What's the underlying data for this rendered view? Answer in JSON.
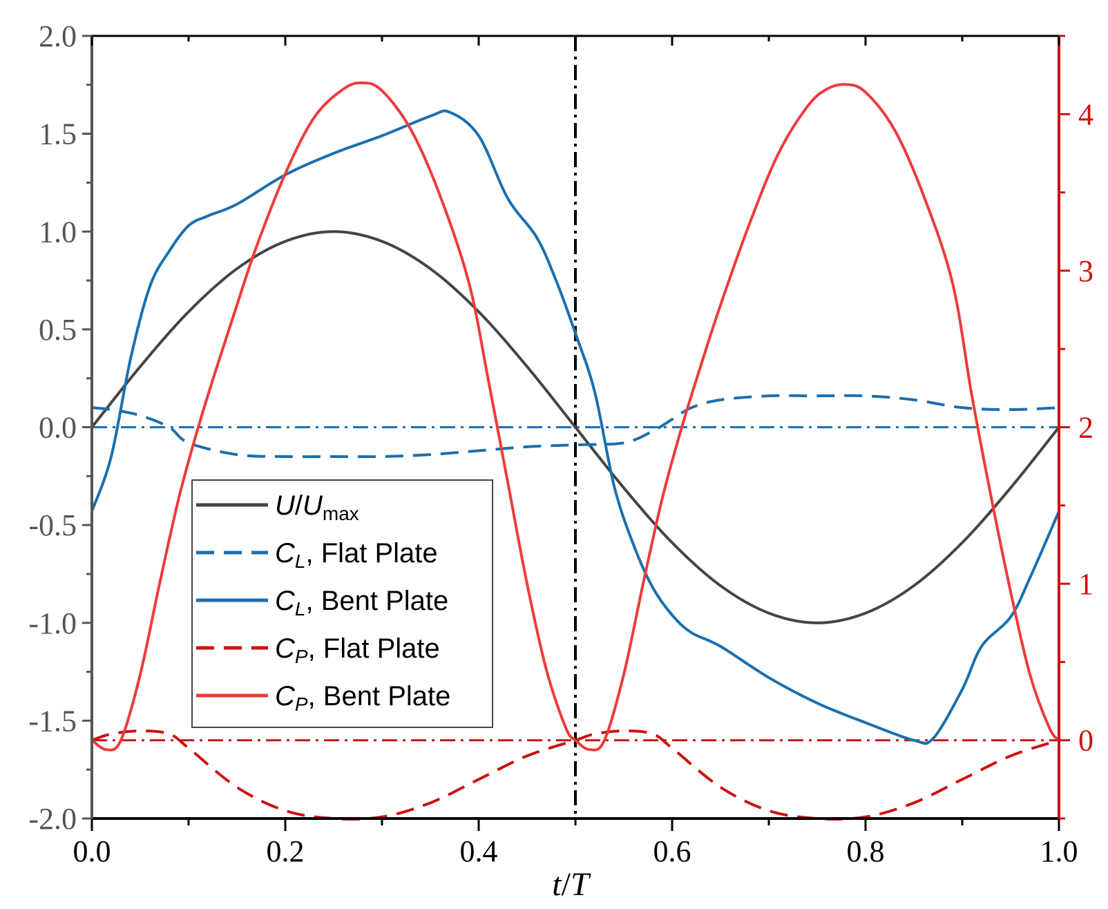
{
  "chart_data": {
    "type": "line",
    "title": "",
    "xlabel": {
      "italic_t": "t",
      "slash": "/",
      "italic_T": "T"
    },
    "x_range": [
      0.0,
      1.0
    ],
    "x_ticks": [
      0.0,
      0.2,
      0.4,
      0.6,
      0.8,
      1.0
    ],
    "x_tick_labels": [
      "0.0",
      "0.2",
      "0.4",
      "0.6",
      "0.8",
      "1.0"
    ],
    "y_left": {
      "range": [
        -2.0,
        2.0
      ],
      "ticks": [
        -2.0,
        -1.5,
        -1.0,
        -0.5,
        0.0,
        0.5,
        1.0,
        1.5,
        2.0
      ],
      "tick_labels": [
        "-2.0",
        "-1.5",
        "-1.0",
        "-0.5",
        "0.0",
        "0.5",
        "1.0",
        "1.5",
        "2.0"
      ],
      "color": "#555555"
    },
    "y_right": {
      "range": [
        -0.5,
        4.5
      ],
      "ticks": [
        0,
        1,
        2,
        3,
        4
      ],
      "tick_labels": [
        "0",
        "1",
        "2",
        "3",
        "4"
      ],
      "color": "#cc1111"
    },
    "vertical_reference": {
      "x": 0.5,
      "color": "#000000",
      "style": "dash-dot"
    },
    "horizontal_references": [
      {
        "axis": "left",
        "y": 0.0,
        "color": "#1a6faf",
        "style": "dash-dot"
      },
      {
        "axis": "right",
        "y": 0.0,
        "color": "#cc1111",
        "style": "dash-dot"
      }
    ],
    "legend_position": "lower-left",
    "series": [
      {
        "name": "U/Umax",
        "legend": {
          "main": "U",
          "slash": "/",
          "main2": "U",
          "sub": "max"
        },
        "axis": "left",
        "color": "#444444",
        "style": "solid",
        "x": [
          0,
          0.05,
          0.1,
          0.15,
          0.2,
          0.25,
          0.3,
          0.35,
          0.4,
          0.45,
          0.5,
          0.55,
          0.6,
          0.65,
          0.7,
          0.75,
          0.8,
          0.85,
          0.9,
          0.95,
          1.0
        ],
        "values": [
          0.0,
          0.31,
          0.59,
          0.81,
          0.95,
          1.0,
          0.95,
          0.81,
          0.59,
          0.31,
          0.0,
          -0.31,
          -0.59,
          -0.81,
          -0.95,
          -1.0,
          -0.95,
          -0.81,
          -0.59,
          -0.31,
          0.0
        ]
      },
      {
        "name": "CL, Flat Plate",
        "legend": {
          "main": "C",
          "sub": "L",
          "rest": ", Flat Plate"
        },
        "axis": "left",
        "color": "#1a6faf",
        "style": "dashed",
        "x": [
          0,
          0.02,
          0.05,
          0.08,
          0.1,
          0.15,
          0.2,
          0.25,
          0.3,
          0.35,
          0.4,
          0.45,
          0.5,
          0.55,
          0.58,
          0.6,
          0.62,
          0.65,
          0.7,
          0.75,
          0.8,
          0.85,
          0.9,
          0.95,
          1.0
        ],
        "values": [
          0.1,
          0.09,
          0.06,
          0.0,
          -0.08,
          -0.14,
          -0.15,
          -0.15,
          -0.15,
          -0.14,
          -0.12,
          -0.1,
          -0.09,
          -0.08,
          -0.02,
          0.04,
          0.1,
          0.14,
          0.16,
          0.16,
          0.16,
          0.14,
          0.1,
          0.09,
          0.1
        ]
      },
      {
        "name": "CL, Bent Plate",
        "legend": {
          "main": "C",
          "sub": "L",
          "rest": ", Bent Plate"
        },
        "axis": "left",
        "color": "#1a6faf",
        "style": "solid",
        "x": [
          0,
          0.02,
          0.04,
          0.06,
          0.08,
          0.1,
          0.12,
          0.15,
          0.2,
          0.25,
          0.3,
          0.35,
          0.37,
          0.4,
          0.43,
          0.46,
          0.48,
          0.5,
          0.52,
          0.54,
          0.56,
          0.58,
          0.6,
          0.62,
          0.65,
          0.7,
          0.75,
          0.8,
          0.85,
          0.87,
          0.9,
          0.92,
          0.95,
          0.97,
          1.0
        ],
        "values": [
          -0.43,
          -0.15,
          0.35,
          0.72,
          0.9,
          1.03,
          1.08,
          1.14,
          1.29,
          1.4,
          1.49,
          1.59,
          1.61,
          1.49,
          1.17,
          0.97,
          0.75,
          0.48,
          0.18,
          -0.3,
          -0.6,
          -0.82,
          -0.96,
          -1.05,
          -1.12,
          -1.28,
          -1.41,
          -1.51,
          -1.6,
          -1.59,
          -1.34,
          -1.12,
          -0.97,
          -0.77,
          -0.43
        ]
      },
      {
        "name": "CP, Flat Plate",
        "legend": {
          "main": "C",
          "sub": "P",
          "rest": ", Flat Plate"
        },
        "axis": "right",
        "color": "#cc1111",
        "style": "dashed",
        "x": [
          0,
          0.02,
          0.05,
          0.08,
          0.1,
          0.15,
          0.2,
          0.25,
          0.3,
          0.35,
          0.4,
          0.45,
          0.5,
          0.52,
          0.55,
          0.58,
          0.6,
          0.65,
          0.7,
          0.75,
          0.8,
          0.85,
          0.9,
          0.95,
          1.0
        ],
        "values": [
          0.0,
          0.04,
          0.06,
          0.04,
          -0.05,
          -0.3,
          -0.45,
          -0.5,
          -0.49,
          -0.4,
          -0.25,
          -0.1,
          0.0,
          0.04,
          0.06,
          0.04,
          -0.05,
          -0.3,
          -0.45,
          -0.5,
          -0.49,
          -0.4,
          -0.25,
          -0.1,
          0.0
        ]
      },
      {
        "name": "CP, Bent Plate",
        "legend": {
          "main": "C",
          "sub": "P",
          "rest": ", Bent Plate"
        },
        "axis": "right",
        "color": "#ee3b3b",
        "style": "solid",
        "x": [
          0,
          0.015,
          0.03,
          0.05,
          0.07,
          0.09,
          0.11,
          0.13,
          0.15,
          0.17,
          0.2,
          0.23,
          0.26,
          0.28,
          0.3,
          0.33,
          0.36,
          0.39,
          0.41,
          0.43,
          0.45,
          0.47,
          0.49,
          0.5,
          0.515,
          0.53,
          0.55,
          0.57,
          0.59,
          0.61,
          0.63,
          0.65,
          0.68,
          0.71,
          0.74,
          0.76,
          0.78,
          0.8,
          0.83,
          0.86,
          0.89,
          0.91,
          0.93,
          0.95,
          0.97,
          0.99,
          1.0
        ],
        "values": [
          0.0,
          -0.06,
          0.0,
          0.42,
          1.0,
          1.55,
          2.0,
          2.4,
          2.78,
          3.15,
          3.62,
          3.98,
          4.16,
          4.2,
          4.15,
          3.9,
          3.48,
          2.92,
          2.3,
          1.65,
          1.0,
          0.45,
          0.08,
          0.0,
          -0.06,
          0.0,
          0.42,
          1.0,
          1.55,
          2.0,
          2.4,
          2.78,
          3.3,
          3.75,
          4.05,
          4.16,
          4.19,
          4.14,
          3.9,
          3.48,
          2.92,
          2.2,
          1.55,
          0.95,
          0.42,
          0.08,
          0.0
        ]
      }
    ]
  }
}
